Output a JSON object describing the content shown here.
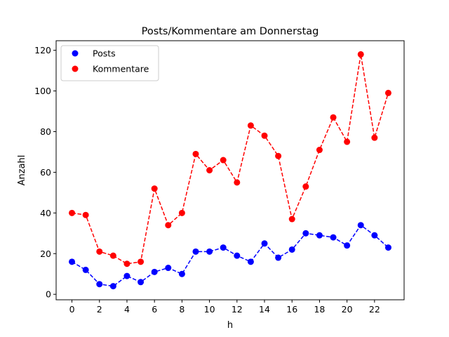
{
  "chart_data": {
    "type": "line",
    "title": "Posts/Kommentare am Donnerstag",
    "xlabel": "h",
    "ylabel": "Anzahl",
    "x": [
      0,
      1,
      2,
      3,
      4,
      5,
      6,
      7,
      8,
      9,
      10,
      11,
      12,
      13,
      14,
      15,
      16,
      17,
      18,
      19,
      20,
      21,
      22,
      23
    ],
    "xlim": [
      -1.15,
      24.15
    ],
    "ylim": [
      -2.7,
      124.7
    ],
    "xticks": [
      0,
      2,
      4,
      6,
      8,
      10,
      12,
      14,
      16,
      18,
      20,
      22
    ],
    "yticks": [
      0,
      20,
      40,
      60,
      80,
      100,
      120
    ],
    "grid": false,
    "legend_position": "top-left",
    "series": [
      {
        "name": "Posts",
        "color": "#0000ff",
        "line_style": "dashed",
        "marker": "circle",
        "values": [
          16,
          12,
          5,
          4,
          9,
          6,
          11,
          13,
          10,
          21,
          21,
          23,
          19,
          16,
          25,
          18,
          22,
          30,
          29,
          28,
          24,
          34,
          29,
          23
        ]
      },
      {
        "name": "Kommentare",
        "color": "#ff0000",
        "line_style": "dashed",
        "marker": "circle",
        "values": [
          40,
          39,
          21,
          19,
          15,
          16,
          52,
          34,
          40,
          69,
          61,
          66,
          55,
          83,
          78,
          68,
          37,
          53,
          71,
          87,
          75,
          118,
          77,
          99
        ]
      }
    ]
  }
}
